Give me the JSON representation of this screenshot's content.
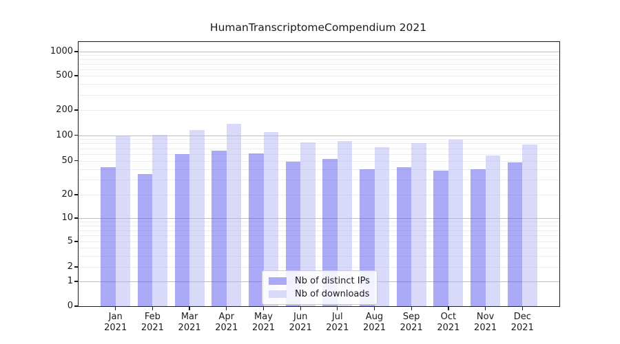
{
  "title": "HumanTranscriptomeCompendium 2021",
  "chart_data": {
    "type": "bar",
    "title": "HumanTranscriptomeCompendium 2021",
    "categories": [
      "Jan",
      "Feb",
      "Mar",
      "Apr",
      "May",
      "Jun",
      "Jul",
      "Aug",
      "Sep",
      "Oct",
      "Nov",
      "Dec"
    ],
    "x_year_label": "2021",
    "series": [
      {
        "name": "Nb of distinct IPs",
        "color": "#aaaaf7",
        "base_color": "#5555f0",
        "values": [
          42,
          35,
          60,
          66,
          61,
          49,
          52,
          40,
          42,
          38,
          40,
          48
        ]
      },
      {
        "name": "Nb of downloads",
        "color": "#d9d9fa",
        "base_color": "#b4b4f5",
        "values": [
          100,
          101,
          115,
          136,
          108,
          82,
          86,
          72,
          81,
          89,
          58,
          78
        ]
      }
    ],
    "yscale": "symlog",
    "ylim": [
      0,
      1300
    ],
    "y_ticks": [
      0,
      1,
      2,
      5,
      10,
      20,
      50,
      100,
      200,
      500,
      1000
    ],
    "y_major_gridlines": [
      1,
      10,
      100,
      1000
    ],
    "grid": "horizontal major + faint minor lines",
    "legend_position": "lower center"
  }
}
